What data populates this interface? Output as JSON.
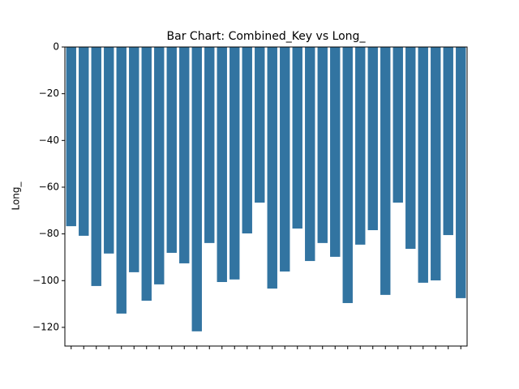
{
  "chart_data": {
    "type": "bar",
    "title": "Bar Chart: Combined_Key vs Long_",
    "y_label": "Long_",
    "categories": [
      null,
      null,
      null,
      null,
      null,
      null,
      null,
      null,
      null,
      null,
      null,
      null,
      null,
      null,
      null,
      null,
      null,
      null,
      null,
      null,
      null,
      null,
      null,
      null,
      null,
      null,
      null,
      null,
      null,
      null,
      null,
      null
    ],
    "values": [
      -76.7,
      -80.8,
      -102.3,
      -88.4,
      -114.1,
      -96.4,
      -108.6,
      -101.6,
      -88.1,
      -92.6,
      -121.7,
      -83.9,
      -100.6,
      -99.5,
      -79.8,
      -66.6,
      -103.4,
      -96.1,
      -77.7,
      -91.6,
      -83.9,
      -89.8,
      -109.6,
      -84.6,
      -78.4,
      -106.1,
      -66.6,
      -86.4,
      -100.9,
      -99.9,
      -80.5,
      -107.5
    ],
    "color": "#3274a1",
    "ylim": [
      -128,
      0
    ],
    "yticks": [
      0,
      {
        "value": -20,
        "label": "−20"
      },
      {
        "value": -40,
        "label": "−40"
      },
      {
        "value": -60,
        "label": "−60"
      },
      {
        "value": -80,
        "label": "−80"
      },
      {
        "value": -100,
        "label": "−100"
      },
      {
        "value": -120,
        "label": "−120"
      }
    ],
    "grid": false
  }
}
